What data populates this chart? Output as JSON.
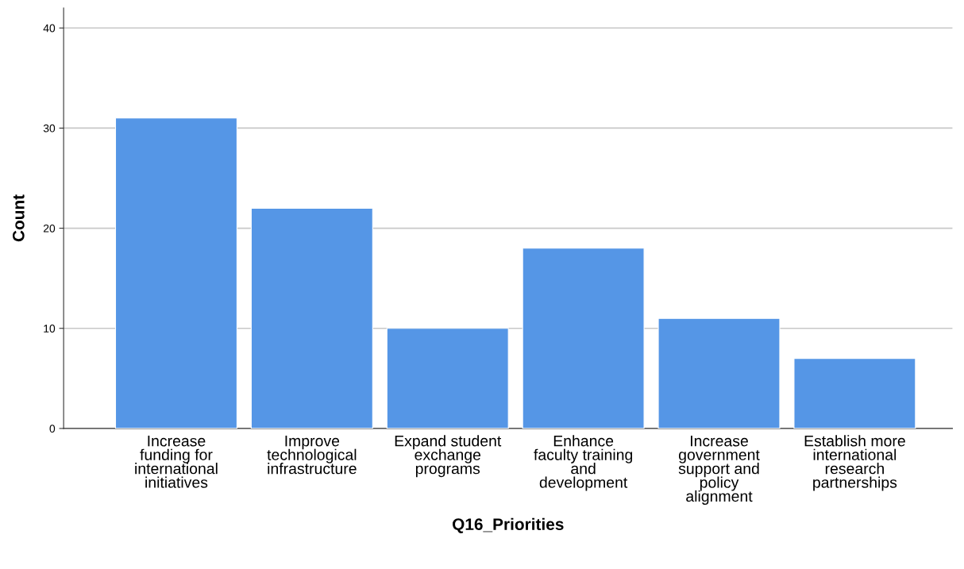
{
  "chart_data": {
    "type": "bar",
    "categories": [
      "Increase\nfunding for\ninternational\ninitiatives",
      "Improve\ntechnological\ninfrastructure",
      "Expand student\nexchange\nprograms",
      "Enhance\nfaculty training\nand\ndevelopment",
      "Increase\ngovernment\nsupport and\npolicy\nalignment",
      "Establish more\ninternational\nresearch\npartnerships"
    ],
    "values": [
      31,
      22,
      10,
      18,
      11,
      7
    ],
    "color": "#5596e6",
    "xlabel": "Q16_Priorities",
    "ylabel": "Count",
    "ylim": [
      0,
      42
    ],
    "yticks": [
      0,
      10,
      20,
      30,
      40
    ],
    "grid": "y"
  }
}
